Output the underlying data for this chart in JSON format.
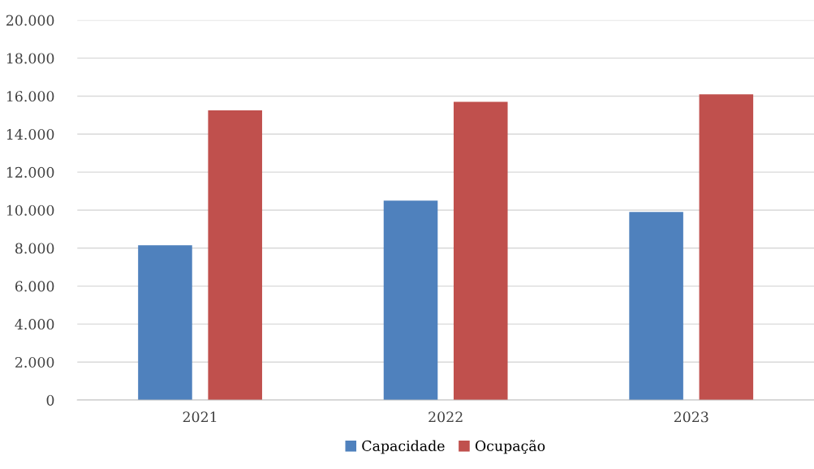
{
  "chart_data": {
    "type": "bar",
    "categories": [
      "2021",
      "2022",
      "2023"
    ],
    "series": [
      {
        "name": "Capacidade",
        "color": "#4f81bd",
        "values": [
          8150,
          10500,
          9900
        ]
      },
      {
        "name": "Ocupação",
        "color": "#c0504d",
        "values": [
          15250,
          15700,
          16100
        ]
      }
    ],
    "ylim": [
      0,
      20000
    ],
    "yticks": [
      {
        "value": 0,
        "label": "0"
      },
      {
        "value": 2000,
        "label": "2.000"
      },
      {
        "value": 4000,
        "label": "4.000"
      },
      {
        "value": 6000,
        "label": "6.000"
      },
      {
        "value": 8000,
        "label": "8.000"
      },
      {
        "value": 10000,
        "label": "10.000"
      },
      {
        "value": 12000,
        "label": "12.000"
      },
      {
        "value": 14000,
        "label": "14.000"
      },
      {
        "value": 16000,
        "label": "16.000"
      },
      {
        "value": 18000,
        "label": "18.000"
      },
      {
        "value": 20000,
        "label": "20.000"
      }
    ],
    "grid": "y",
    "legend": "bottom"
  }
}
